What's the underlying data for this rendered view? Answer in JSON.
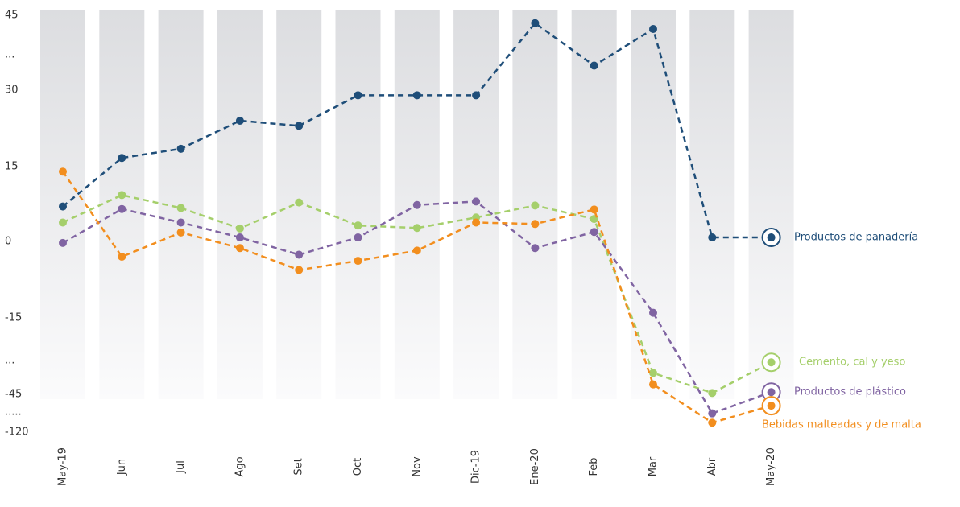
{
  "chart_data": {
    "type": "line",
    "categories": [
      "May-19",
      "Jun",
      "Jul",
      "Ago",
      "Set",
      "Oct",
      "Nov",
      "Dic-19",
      "Ene-20",
      "Feb",
      "Mar",
      "Abr",
      "May-20"
    ],
    "series": [
      {
        "name": "Productos de panadería",
        "color": "#1f4e79",
        "values": [
          7.0,
          16.7,
          18.5,
          24,
          23,
          29,
          29,
          29,
          43.5,
          35.2,
          42.4,
          0.8,
          0.8
        ]
      },
      {
        "name": "Cemento, cal y yeso",
        "color": "#a5cf6b",
        "values": [
          3.8,
          9.3,
          6.7,
          2.6,
          7.8,
          3.2,
          2.7,
          4.8,
          7.2,
          4.5,
          -35.5,
          -44.4,
          -30.8
        ]
      },
      {
        "name": "Productos de plástico",
        "color": "#8064a2",
        "values": [
          -0.3,
          6.5,
          3.8,
          0.8,
          -2.6,
          0.8,
          7.3,
          8,
          -1.3,
          1.9,
          -14,
          -85,
          -44
        ]
      },
      {
        "name": "Bebidas malteadas y de malta",
        "color": "#f28e1e",
        "values": [
          14,
          -3,
          1.8,
          -1.3,
          -5.6,
          -3.8,
          -1.8,
          3.8,
          3.5,
          6.4,
          -40.6,
          -102.4,
          -69
        ]
      }
    ],
    "ylim": [
      -120,
      45
    ],
    "yticks": [
      45,
      {
        "value": 37.5,
        "label": "..."
      },
      30,
      15,
      0,
      -15,
      {
        "value": -30,
        "label": "..."
      },
      -45,
      {
        "value": -82.5,
        "label": "....."
      },
      -120
    ],
    "grid": false
  }
}
